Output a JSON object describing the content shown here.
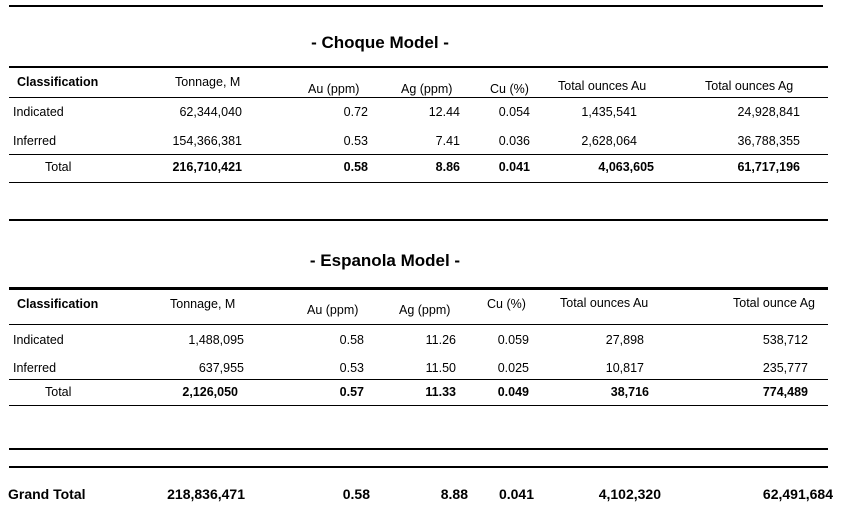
{
  "choque": {
    "title": "- Choque Model -",
    "headers": [
      "Classification",
      "Tonnage, M",
      "Au (ppm)",
      "Ag (ppm)",
      "Cu (%)",
      "Total ounces Au",
      "Total ounces Ag"
    ],
    "rows": [
      [
        "Indicated",
        "62,344,040",
        "0.72",
        "12.44",
        "0.054",
        "1,435,541",
        "24,928,841"
      ],
      [
        "Inferred",
        "154,366,381",
        "0.53",
        "7.41",
        "0.036",
        "2,628,064",
        "36,788,355"
      ]
    ],
    "total": [
      "Total",
      "216,710,421",
      "0.58",
      "8.86",
      "0.041",
      "4,063,605",
      "61,717,196"
    ]
  },
  "espanola": {
    "title": "- Espanola Model -",
    "headers": [
      "Classification",
      "Tonnage, M",
      "Au (ppm)",
      "Ag (ppm)",
      "Cu (%)",
      "Total ounces Au",
      "Total ounce Ag"
    ],
    "rows": [
      [
        "Indicated",
        "1,488,095",
        "0.58",
        "11.26",
        "0.059",
        "27,898",
        "538,712"
      ],
      [
        "Inferred",
        "637,955",
        "0.53",
        "11.50",
        "0.025",
        "10,817",
        "235,777"
      ]
    ],
    "total": [
      "Total",
      "2,126,050",
      "0.57",
      "11.33",
      "0.049",
      "38,716",
      "774,489"
    ]
  },
  "grand_total": [
    "Grand Total",
    "218,836,471",
    "0.58",
    "8.88",
    "0.041",
    "4,102,320",
    "62,491,684"
  ]
}
